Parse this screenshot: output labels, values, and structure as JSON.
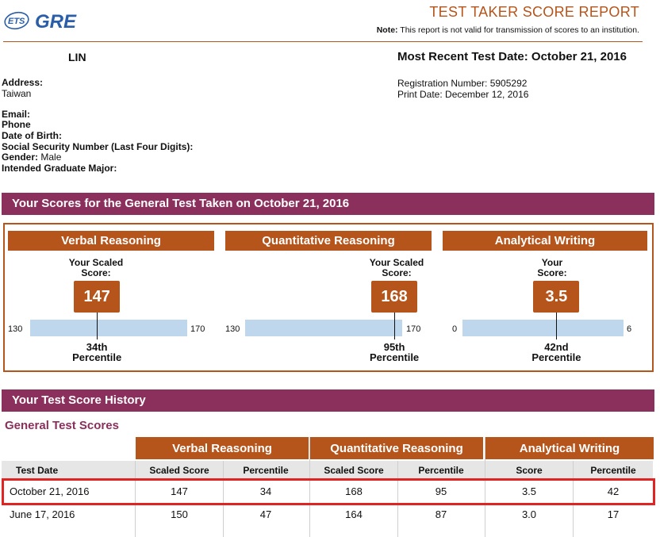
{
  "header": {
    "logo_ets": "ETS",
    "logo_gre": "GRE",
    "title": "TEST TAKER SCORE REPORT",
    "note_label": "Note:",
    "note_text": "This report is not valid for transmission of scores to an institution."
  },
  "candidate": {
    "name": "LIN",
    "recent_test_date": "Most Recent Test Date: October 21, 2016",
    "address_label": "Address:",
    "address_value": "Taiwan",
    "registration": "Registration Number: 5905292",
    "print_date": "Print Date: December 12, 2016",
    "email_label": "Email:",
    "phone_label": "Phone",
    "dob_label": "Date of Birth:",
    "ssn_label": "Social Security Number (Last Four Digits):",
    "gender_label": "Gender:",
    "gender_value": "Male",
    "major_label": "Intended Graduate Major:"
  },
  "scores_banner": "Your Scores for the General Test Taken on October 21, 2016",
  "sections": [
    {
      "title": "Verbal Reasoning",
      "score_label": "Your Scaled\nScore:",
      "score": "147",
      "min": "130",
      "max": "170",
      "percentile": "34th",
      "percentile_word": "Percentile",
      "score_value": 147,
      "range": [
        130,
        170
      ]
    },
    {
      "title": "Quantitative Reasoning",
      "score_label": "Your Scaled\nScore:",
      "score": "168",
      "min": "130",
      "max": "170",
      "percentile": "95th",
      "percentile_word": "Percentile",
      "score_value": 168,
      "range": [
        130,
        170
      ]
    },
    {
      "title": "Analytical Writing",
      "score_label": "Your\nScore:",
      "score": "3.5",
      "min": "0",
      "max": "6",
      "percentile": "42nd",
      "percentile_word": "Percentile",
      "score_value": 3.5,
      "range": [
        0,
        6
      ]
    }
  ],
  "history": {
    "banner": "Your Test Score History",
    "subtitle": "General Test Scores",
    "groups": [
      "Verbal Reasoning",
      "Quantitative Reasoning",
      "Analytical Writing"
    ],
    "columns": [
      "Test Date",
      "Scaled Score",
      "Percentile",
      "Scaled Score",
      "Percentile",
      "Score",
      "Percentile"
    ],
    "rows": [
      [
        "October 21, 2016",
        "147",
        "34",
        "168",
        "95",
        "3.5",
        "42"
      ],
      [
        "June 17, 2016",
        "150",
        "47",
        "164",
        "87",
        "3.0",
        "17"
      ]
    ]
  },
  "colors": {
    "accent": "#b5541b",
    "banner": "#8b2f5c",
    "bar": "#bfd7ec",
    "highlight": "#e02424"
  }
}
